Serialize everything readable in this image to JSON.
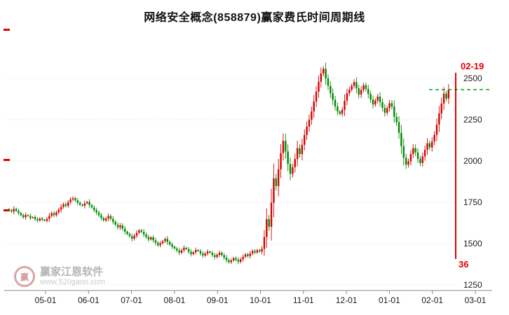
{
  "fib_marker": {
    "top_label": "02-19",
    "bottom_label": "36"
  },
  "watermark": {
    "brand": "赢家江恩软件",
    "url": "www.520gann.com",
    "logo_glyph": "赢"
  },
  "colors": {
    "accent_red": "#e00000",
    "up_candle": "#d40000",
    "down_candle": "#008800",
    "last_price_line_green": "#00a822",
    "grid": "#dadada",
    "watermark_gray": "#b5b5b5"
  },
  "chart_data": {
    "type": "candlestick",
    "title": "网络安全概念(858879)赢家费氏时间周期线",
    "xlabel": "",
    "ylabel": "",
    "y_ticks": [
      2500,
      2250,
      2000,
      1750,
      1500,
      1250
    ],
    "x_ticks": [
      "05-01",
      "06-01",
      "07-01",
      "08-01",
      "09-01",
      "10-01",
      "11-01",
      "12-01",
      "01-01",
      "02-01",
      "03-01"
    ],
    "ylim": [
      1216,
      2784
    ],
    "grid": "dotted-horizontal",
    "legend": "none",
    "last_price_line": 2432,
    "fib_time_line_label": "02-19",
    "fib_time_line_number": 36,
    "closes": [
      1702,
      1694,
      1710,
      1698,
      1685,
      1672,
      1660,
      1673,
      1668,
      1655,
      1661,
      1648,
      1640,
      1652,
      1645,
      1638,
      1650,
      1668,
      1684,
      1672,
      1690,
      1705,
      1722,
      1738,
      1729,
      1751,
      1768,
      1775,
      1762,
      1748,
      1735,
      1729,
      1744,
      1752,
      1733,
      1718,
      1702,
      1688,
      1671,
      1655,
      1640,
      1652,
      1667,
      1650,
      1632,
      1615,
      1598,
      1610,
      1590,
      1572,
      1558,
      1545,
      1530,
      1548,
      1565,
      1580,
      1572,
      1556,
      1540,
      1525,
      1538,
      1520,
      1505,
      1490,
      1502,
      1515,
      1528,
      1510,
      1495,
      1482,
      1470,
      1458,
      1445,
      1460,
      1475,
      1466,
      1450,
      1437,
      1448,
      1462,
      1455,
      1440,
      1428,
      1440,
      1452,
      1444,
      1430,
      1419,
      1432,
      1445,
      1430,
      1415,
      1400,
      1388,
      1398,
      1412,
      1402,
      1390,
      1405,
      1420,
      1435,
      1425,
      1440,
      1455,
      1446,
      1460,
      1452,
      1468,
      1540,
      1648,
      1602,
      1748,
      1895,
      1848,
      1950,
      2048,
      2122,
      2058,
      1982,
      1922,
      1962,
      2012,
      2078,
      2042,
      2098,
      2158,
      2208,
      2250,
      2300,
      2360,
      2420,
      2480,
      2530,
      2558,
      2500,
      2455,
      2410,
      2370,
      2330,
      2300,
      2285,
      2310,
      2365,
      2410,
      2432,
      2455,
      2478,
      2440,
      2402,
      2430,
      2458,
      2436,
      2405,
      2372,
      2342,
      2366,
      2390,
      2356,
      2322,
      2292,
      2320,
      2350,
      2330,
      2268,
      2235,
      2170,
      2090,
      2020,
      1978,
      1998,
      2042,
      2078,
      2052,
      2012,
      1988,
      2028,
      2068,
      2108,
      2082,
      2118,
      2158,
      2220,
      2288,
      2348,
      2408,
      2378,
      2432
    ]
  }
}
